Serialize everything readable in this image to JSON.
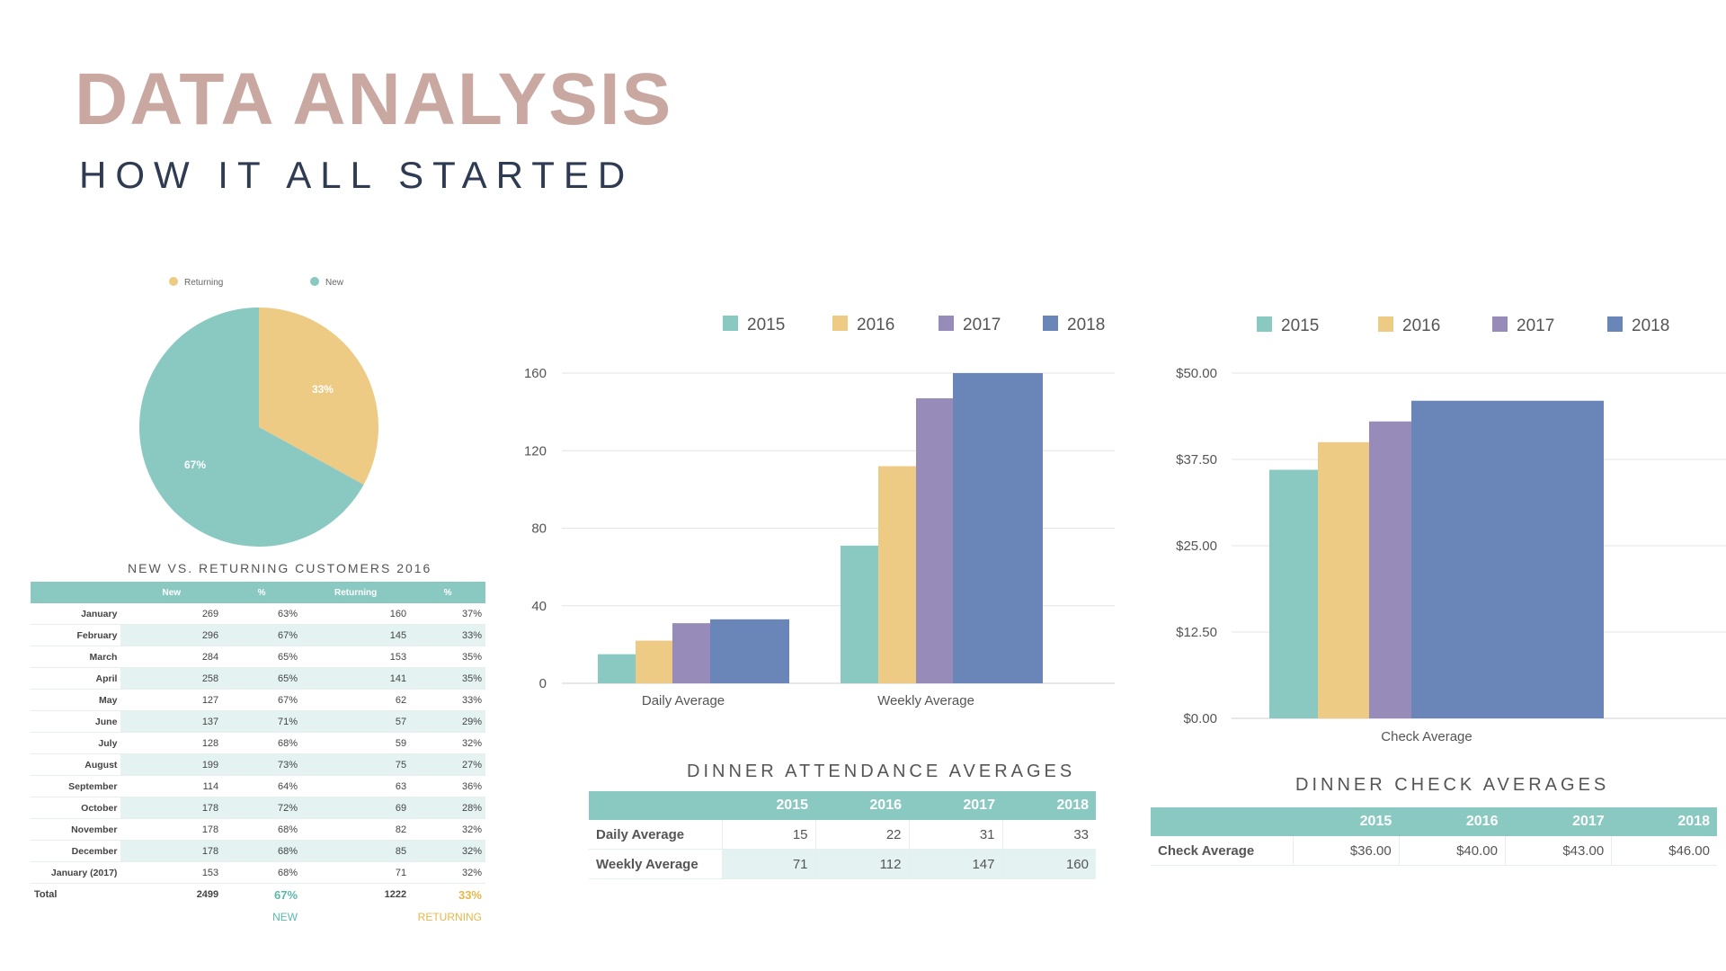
{
  "header": {
    "title": "DATA ANALYSIS",
    "subtitle": "HOW IT ALL STARTED"
  },
  "colors": {
    "teal": "#8ac9c2",
    "yellow": "#eecb85",
    "purple": "#968bb9",
    "blue": "#6a86b8",
    "title": "#c9a8a2",
    "subtitle": "#2f3b52",
    "light_teal": "#e4f3f1"
  },
  "chart_data": [
    {
      "type": "pie",
      "labels": [
        "Returning",
        "New"
      ],
      "values": [
        33,
        67
      ],
      "value_labels": [
        "33%",
        "67%"
      ],
      "colors": [
        "#eecb85",
        "#8ac9c2"
      ],
      "legend": "top"
    },
    {
      "type": "bar",
      "categories": [
        "Daily Average",
        "Weekly Average"
      ],
      "series": [
        {
          "name": "2015",
          "values": [
            15,
            71
          ]
        },
        {
          "name": "2016",
          "values": [
            22,
            112
          ]
        },
        {
          "name": "2017",
          "values": [
            31,
            147
          ]
        },
        {
          "name": "2018",
          "values": [
            33,
            160
          ]
        }
      ],
      "yticks": [
        "0",
        "40",
        "80",
        "120",
        "160"
      ],
      "ylim": [
        0,
        160
      ],
      "grid": true,
      "legend": "top"
    },
    {
      "type": "bar",
      "categories": [
        "Check Average"
      ],
      "series": [
        {
          "name": "2015",
          "values": [
            36
          ]
        },
        {
          "name": "2016",
          "values": [
            40
          ]
        },
        {
          "name": "2017",
          "values": [
            43
          ]
        },
        {
          "name": "2018",
          "values": [
            46
          ]
        }
      ],
      "yticks": [
        "$0.00",
        "$12.50",
        "$25.00",
        "$37.50",
        "$50.00"
      ],
      "ylim": [
        0,
        50
      ],
      "grid": true,
      "legend": "top"
    }
  ],
  "customers": {
    "caption": "NEW VS. RETURNING CUSTOMERS 2016",
    "headers": [
      "",
      "New",
      "%",
      "Returning",
      "%"
    ],
    "rows": [
      [
        "January",
        "269",
        "63%",
        "160",
        "37%"
      ],
      [
        "February",
        "296",
        "67%",
        "145",
        "33%"
      ],
      [
        "March",
        "284",
        "65%",
        "153",
        "35%"
      ],
      [
        "April",
        "258",
        "65%",
        "141",
        "35%"
      ],
      [
        "May",
        "127",
        "67%",
        "62",
        "33%"
      ],
      [
        "June",
        "137",
        "71%",
        "57",
        "29%"
      ],
      [
        "July",
        "128",
        "68%",
        "59",
        "32%"
      ],
      [
        "August",
        "199",
        "73%",
        "75",
        "27%"
      ],
      [
        "September",
        "114",
        "64%",
        "63",
        "36%"
      ],
      [
        "October",
        "178",
        "72%",
        "69",
        "28%"
      ],
      [
        "November",
        "178",
        "68%",
        "82",
        "32%"
      ],
      [
        "December",
        "178",
        "68%",
        "85",
        "32%"
      ],
      [
        "January (2017)",
        "153",
        "68%",
        "71",
        "32%"
      ]
    ],
    "total": [
      "Total",
      "2499",
      "67%",
      "1222",
      "33%"
    ],
    "footer": [
      "NEW",
      "RETURNING"
    ]
  },
  "attendance": {
    "caption": "DINNER ATTENDANCE AVERAGES",
    "headers": [
      "",
      "2015",
      "2016",
      "2017",
      "2018"
    ],
    "rows": [
      [
        "Daily Average",
        "15",
        "22",
        "31",
        "33"
      ],
      [
        "Weekly Average",
        "71",
        "112",
        "147",
        "160"
      ]
    ]
  },
  "check": {
    "caption": "DINNER CHECK AVERAGES",
    "headers": [
      "",
      "2015",
      "2016",
      "2017",
      "2018"
    ],
    "rows": [
      [
        "Check Average",
        "$36.00",
        "$40.00",
        "$43.00",
        "$46.00"
      ]
    ]
  }
}
